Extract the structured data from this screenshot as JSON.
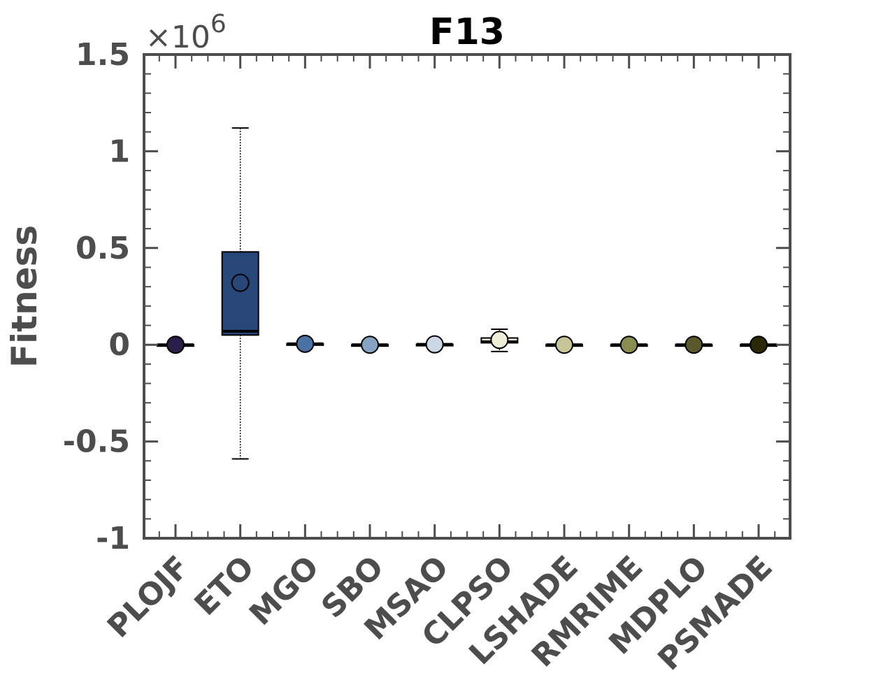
{
  "chart_data": {
    "type": "box",
    "title": "F13",
    "xlabel": "",
    "ylabel": "Fitness",
    "y_exponent_label": "×10",
    "y_exponent_power": "6",
    "y_scale": 1000000,
    "ylim": [
      -1,
      1.5
    ],
    "yticks": [
      -1,
      -0.5,
      0,
      0.5,
      1,
      1.5
    ],
    "ytick_labels": [
      "-1",
      "-0.5",
      "0",
      "0.5",
      "1",
      "1.5"
    ],
    "grid": false,
    "categories": [
      "PLOJF",
      "ETO",
      "MGO",
      "SBO",
      "MSAO",
      "CLPSO",
      "LSHADE",
      "RMRIME",
      "MDPLO",
      "PSMADE"
    ],
    "series": [
      {
        "category": "PLOJF",
        "color": "#2a1e4a",
        "whisker_low": 0,
        "q1": 0,
        "median": 0,
        "q3": 0,
        "whisker_high": 0,
        "mean": 0
      },
      {
        "category": "ETO",
        "color": "#284779",
        "whisker_low": -0.59,
        "q1": 0.05,
        "median": 0.07,
        "q3": 0.48,
        "whisker_high": 1.12,
        "mean": 0.32
      },
      {
        "category": "MGO",
        "color": "#4a72a4",
        "whisker_low": 0.005,
        "q1": 0.005,
        "median": 0.005,
        "q3": 0.005,
        "whisker_high": 0.005,
        "mean": 0.005
      },
      {
        "category": "SBO",
        "color": "#87a3c4",
        "whisker_low": 0,
        "q1": 0,
        "median": 0,
        "q3": 0,
        "whisker_high": 0,
        "mean": 0
      },
      {
        "category": "MSAO",
        "color": "#ccd8e6",
        "whisker_low": 0.002,
        "q1": 0.002,
        "median": 0.002,
        "q3": 0.002,
        "whisker_high": 0.002,
        "mean": 0.002
      },
      {
        "category": "CLPSO",
        "color": "#eeeed8",
        "whisker_low": -0.035,
        "q1": 0.01,
        "median": 0.015,
        "q3": 0.035,
        "whisker_high": 0.08,
        "mean": 0.025
      },
      {
        "category": "LSHADE",
        "color": "#c8c698",
        "whisker_low": 0,
        "q1": 0,
        "median": 0,
        "q3": 0,
        "whisker_high": 0,
        "mean": 0
      },
      {
        "category": "RMRIME",
        "color": "#8a8c52",
        "whisker_low": 0,
        "q1": 0,
        "median": 0,
        "q3": 0,
        "whisker_high": 0,
        "mean": 0
      },
      {
        "category": "MDPLO",
        "color": "#5a582c",
        "whisker_low": 0,
        "q1": 0,
        "median": 0,
        "q3": 0,
        "whisker_high": 0,
        "mean": 0
      },
      {
        "category": "PSMADE",
        "color": "#2a2808",
        "whisker_low": 0,
        "q1": 0,
        "median": 0,
        "q3": 0,
        "whisker_high": 0,
        "mean": 0
      }
    ]
  }
}
